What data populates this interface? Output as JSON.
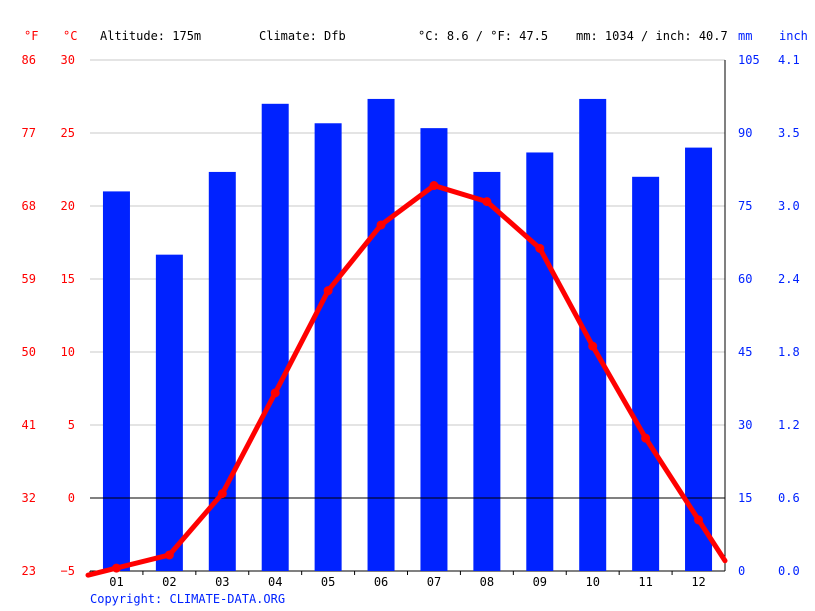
{
  "header": {
    "altitude": "Altitude: 175m",
    "climate": "Climate: Dfb",
    "temp_avg": "°C: 8.6 / °F: 47.5",
    "precip_total": "mm: 1034 / inch: 40.7"
  },
  "axes": {
    "f_unit": "°F",
    "c_unit": "°C",
    "mm_unit": "mm",
    "inch_unit": "inch",
    "f_ticks": [
      "86",
      "77",
      "68",
      "59",
      "50",
      "41",
      "32",
      "23"
    ],
    "c_ticks": [
      "30",
      "25",
      "20",
      "15",
      "10",
      "5",
      "0",
      "−5"
    ],
    "mm_ticks": [
      "105",
      "90",
      "75",
      "60",
      "45",
      "30",
      "15",
      "0"
    ],
    "inch_ticks": [
      "4.1",
      "3.5",
      "3.0",
      "2.4",
      "1.8",
      "1.2",
      "0.6",
      "0.0"
    ]
  },
  "copyright": "Copyright: CLIMATE-DATA.ORG",
  "colors": {
    "bar": "#0022ff",
    "temp_line": "#ff0000",
    "temp_axis": "#ff0000",
    "precip_axis": "#0022ff",
    "grid": "#c8c8c8",
    "zero_line": "#000000",
    "copyright": "#0022ff"
  },
  "chart_data": {
    "type": "bar",
    "categories": [
      "01",
      "02",
      "03",
      "04",
      "05",
      "06",
      "07",
      "08",
      "09",
      "10",
      "11",
      "12"
    ],
    "precipitation_mm": [
      78,
      65,
      82,
      96,
      92,
      97,
      91,
      82,
      86,
      97,
      81,
      87
    ],
    "temperature_c": [
      -4.8,
      -3.9,
      0.3,
      7.2,
      14.2,
      18.7,
      21.4,
      20.3,
      17.1,
      10.4,
      4.1,
      -1.5
    ],
    "temp_ylim_c": [
      -5,
      30
    ],
    "precip_ylim_mm": [
      0,
      105
    ],
    "series": [
      {
        "values": [
          78,
          65,
          82,
          96,
          92,
          97,
          91,
          82,
          86,
          97,
          81,
          87
        ]
      },
      {
        "values": [
          -4.8,
          -3.9,
          0.3,
          7.2,
          14.2,
          18.7,
          21.4,
          20.3,
          17.1,
          10.4,
          4.1,
          -1.5
        ]
      }
    ],
    "grid": true
  }
}
